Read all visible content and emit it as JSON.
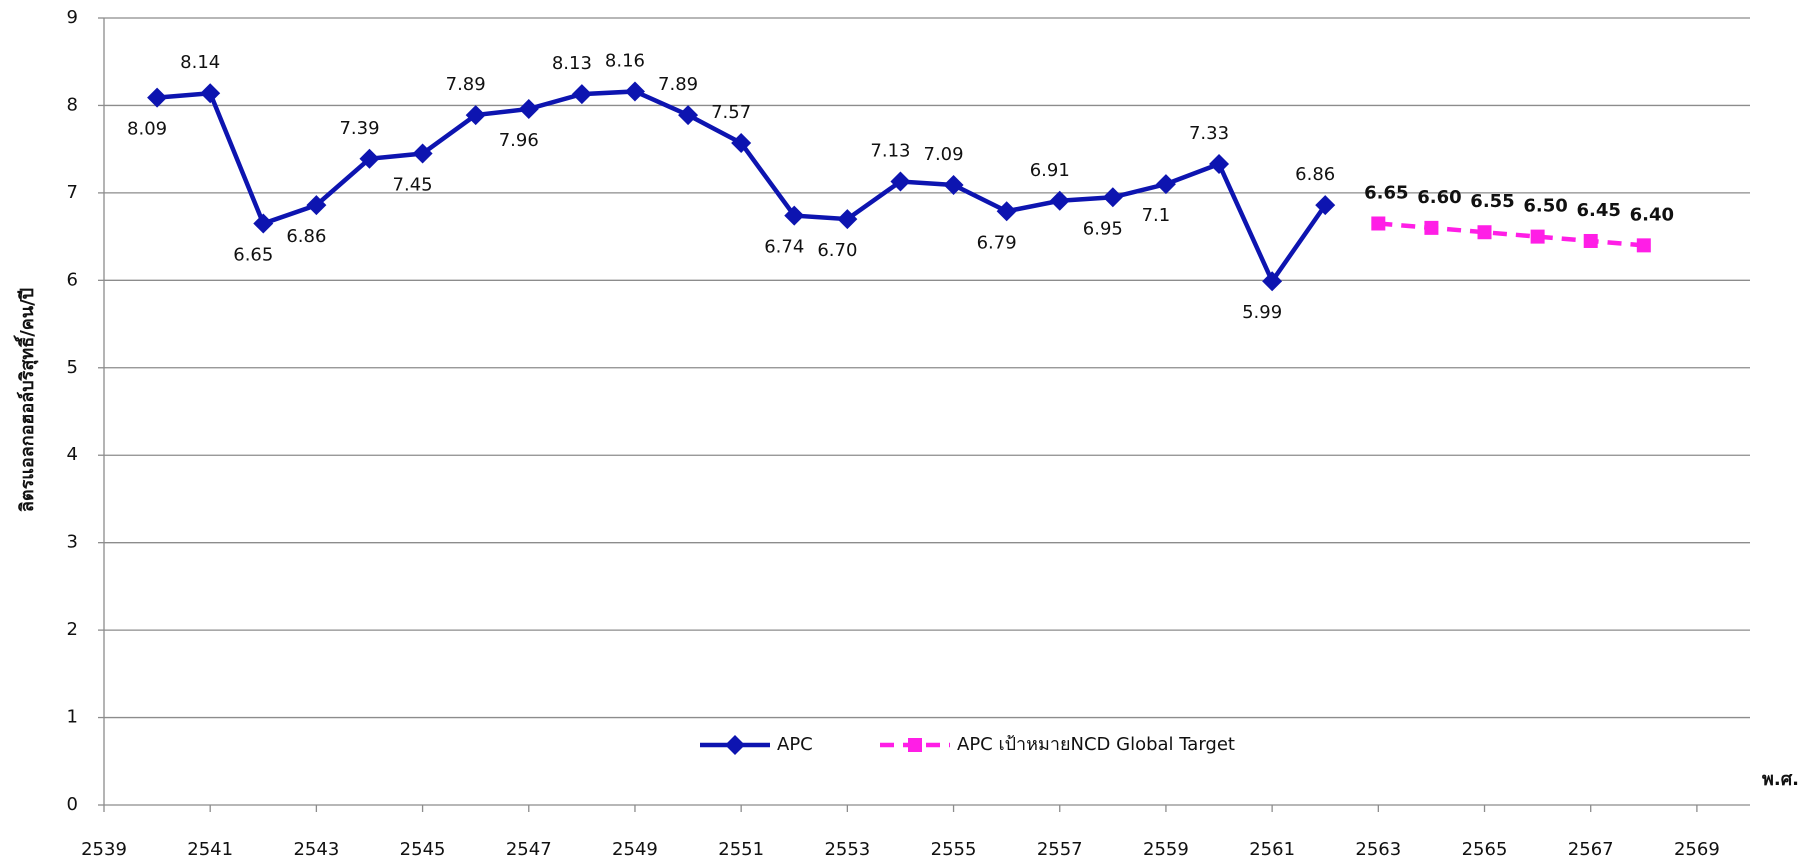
{
  "chart_data": {
    "type": "line",
    "y_label": "ลิตรแอลกอฮอล์บริสุทธิ์/คน/ปี",
    "x_label": "พ.ศ.",
    "xlim": [
      2539,
      2570
    ],
    "xticks": [
      2539,
      2541,
      2543,
      2545,
      2547,
      2549,
      2551,
      2553,
      2555,
      2557,
      2559,
      2561,
      2563,
      2565,
      2567,
      2569
    ],
    "ylim": [
      0,
      9
    ],
    "yticks": [
      0,
      1,
      2,
      3,
      4,
      5,
      6,
      7,
      8,
      9
    ],
    "grid": true,
    "legend": "bottom",
    "series": [
      {
        "name": "APC",
        "color": "#0d14b0",
        "marker": "diamond",
        "dashed": false,
        "x": [
          2540,
          2541,
          2542,
          2543,
          2544,
          2545,
          2546,
          2547,
          2548,
          2549,
          2550,
          2551,
          2552,
          2553,
          2554,
          2555,
          2556,
          2557,
          2558,
          2559,
          2560,
          2561,
          2562
        ],
        "values": [
          8.09,
          8.14,
          6.65,
          6.86,
          7.39,
          7.45,
          7.89,
          7.96,
          8.13,
          8.16,
          7.89,
          7.57,
          6.74,
          6.7,
          7.13,
          7.09,
          6.79,
          6.91,
          6.95,
          7.1,
          7.33,
          5.99,
          6.86
        ],
        "value_labels": [
          "8.09",
          "8.14",
          "6.65",
          "6.86",
          "7.39",
          "7.45",
          "7.89",
          "7.96",
          "8.13",
          "8.16",
          "7.89",
          "7.57",
          "6.74",
          "6.70",
          "7.13",
          "7.09",
          "6.79",
          "6.91",
          "6.95",
          "7.1",
          "7.33",
          "5.99",
          "6.86"
        ]
      },
      {
        "name": "APC เป้าหมายNCD Global Target",
        "color": "#ff1ee6",
        "marker": "square",
        "dashed": true,
        "x": [
          2563,
          2564,
          2565,
          2566,
          2567,
          2568
        ],
        "values": [
          6.65,
          6.6,
          6.55,
          6.5,
          6.45,
          6.4
        ],
        "value_labels": [
          "6.65",
          "6.60",
          "6.55",
          "6.50",
          "6.45",
          "6.40"
        ]
      }
    ]
  }
}
